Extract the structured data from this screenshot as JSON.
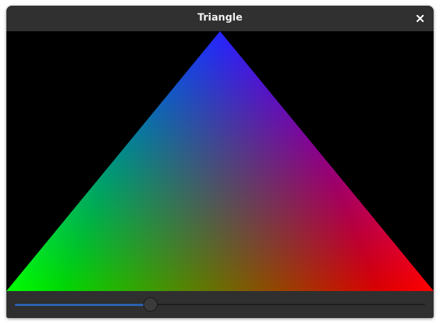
{
  "window": {
    "title": "Triangle",
    "close_icon": "close-icon"
  },
  "canvas": {
    "shape": "triangle",
    "background": "#000000",
    "vertex_colors": {
      "top": "#0000ff",
      "bottom_left": "#00ff00",
      "bottom_right": "#ff0000"
    }
  },
  "slider": {
    "value": 0.33,
    "fill_color": "#2a62b3"
  }
}
